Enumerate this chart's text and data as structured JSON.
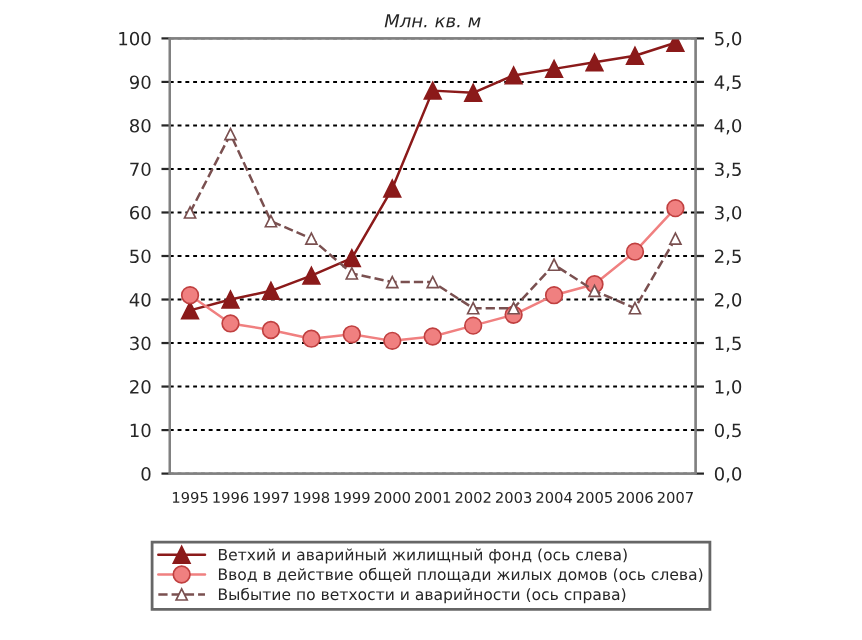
{
  "chart_data": {
    "type": "line",
    "title": "Млн. кв. м",
    "categories": [
      "1995",
      "1996",
      "1997",
      "1998",
      "1999",
      "2000",
      "2001",
      "2002",
      "2003",
      "2004",
      "2005",
      "2006",
      "2007"
    ],
    "series": [
      {
        "name": "Ветхий и аварийный жилищный фонд (ось слева)",
        "color": "#8b1a1a",
        "marker": "triangle",
        "line_style": "solid",
        "values": [
          37.5,
          40,
          42,
          45.5,
          49.5,
          65.5,
          88,
          87.5,
          91.5,
          93,
          94.5,
          96,
          99
        ]
      },
      {
        "name": "Ввод в действие общей площади жилых домов (ось слева)",
        "color": "#f08080",
        "marker": "circle",
        "line_style": "solid",
        "values": [
          41,
          34.5,
          33,
          31,
          32,
          30.5,
          31.5,
          34,
          36.5,
          41,
          43.5,
          51,
          61
        ]
      },
      {
        "name": "Выбытие по ветхости и аварийности (ось справа)",
        "color": "#7a5050",
        "marker": "triangle",
        "line_style": "dashed",
        "axis": "y2",
        "values": [
          3.0,
          3.9,
          2.9,
          2.7,
          2.3,
          2.2,
          2.2,
          1.9,
          1.9,
          2.4,
          2.1,
          1.9,
          2.7
        ]
      }
    ],
    "ylim": [
      0,
      100
    ],
    "yticks": [
      0,
      10,
      20,
      30,
      40,
      50,
      60,
      70,
      80,
      90,
      100
    ],
    "y2lim": [
      0,
      5
    ],
    "y2ticks": [
      {
        "value": 0,
        "label": "0,0"
      },
      {
        "value": 0.5,
        "label": "0,5"
      },
      {
        "value": 1,
        "label": "1,0"
      },
      {
        "value": 1.5,
        "label": "1,5"
      },
      {
        "value": 2,
        "label": "2,0"
      },
      {
        "value": 2.5,
        "label": "2,5"
      },
      {
        "value": 3,
        "label": "3,0"
      },
      {
        "value": 3.5,
        "label": "3,5"
      },
      {
        "value": 4,
        "label": "4,0"
      },
      {
        "value": 4.5,
        "label": "4,5"
      },
      {
        "value": 5,
        "label": "5,0"
      }
    ],
    "grid": "y",
    "legend": "bottom"
  }
}
